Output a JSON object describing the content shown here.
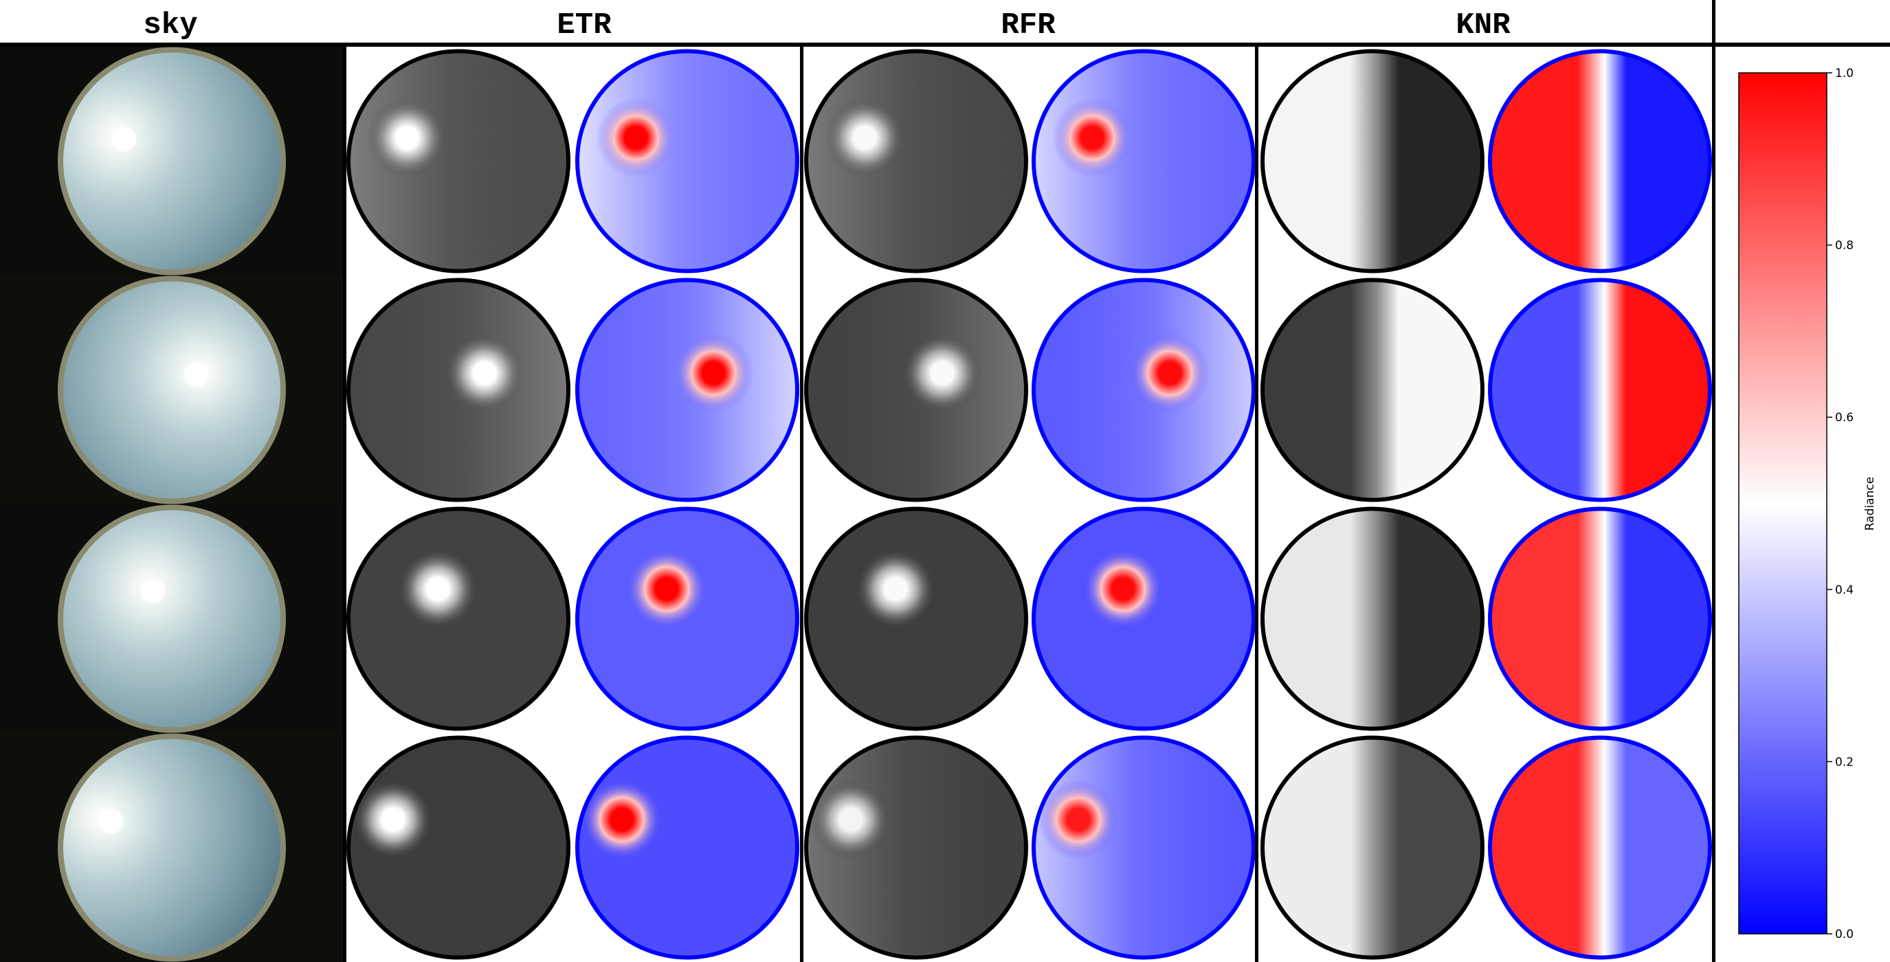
{
  "headers": {
    "sky": "sky",
    "etr": "ETR",
    "rfr": "RFR",
    "knr": "KNR"
  },
  "colorbar": {
    "label": "Radiance",
    "ticks": [
      "0.0",
      "0.2",
      "0.4",
      "0.6",
      "0.8",
      "1.0"
    ],
    "tick_values": [
      0.0,
      0.2,
      0.4,
      0.6,
      0.8,
      1.0
    ],
    "min": 0.0,
    "max": 1.0,
    "colormap": "bwr",
    "colors": {
      "low": "#0000ff",
      "mid": "#ffffff",
      "high": "#ff0000"
    }
  },
  "rows": [
    {
      "sun": "upper-left",
      "etr": {
        "sun_peak": 1.0,
        "background": 0.22,
        "trend": "left-bright"
      },
      "rfr": {
        "sun_peak": 0.98,
        "background": 0.2,
        "trend": "left-bright"
      },
      "knr": {
        "left": 0.95,
        "right": 0.05
      }
    },
    {
      "sun": "upper-right",
      "etr": {
        "sun_peak": 1.0,
        "background": 0.2,
        "trend": "right-bright"
      },
      "rfr": {
        "sun_peak": 0.98,
        "background": 0.18,
        "trend": "right-bright"
      },
      "knr": {
        "left": 0.15,
        "right": 0.97
      }
    },
    {
      "sun": "upper-center",
      "etr": {
        "sun_peak": 1.0,
        "background": 0.18,
        "trend": "flat"
      },
      "rfr": {
        "sun_peak": 0.98,
        "background": 0.16,
        "trend": "flat"
      },
      "knr": {
        "left": 0.9,
        "right": 0.1
      }
    },
    {
      "sun": "far-left",
      "etr": {
        "sun_peak": 1.0,
        "background": 0.15,
        "trend": "flat"
      },
      "rfr": {
        "sun_peak": 0.95,
        "background": 0.17,
        "trend": "left-bright"
      },
      "knr": {
        "left": 0.92,
        "right": 0.2
      }
    }
  ]
}
